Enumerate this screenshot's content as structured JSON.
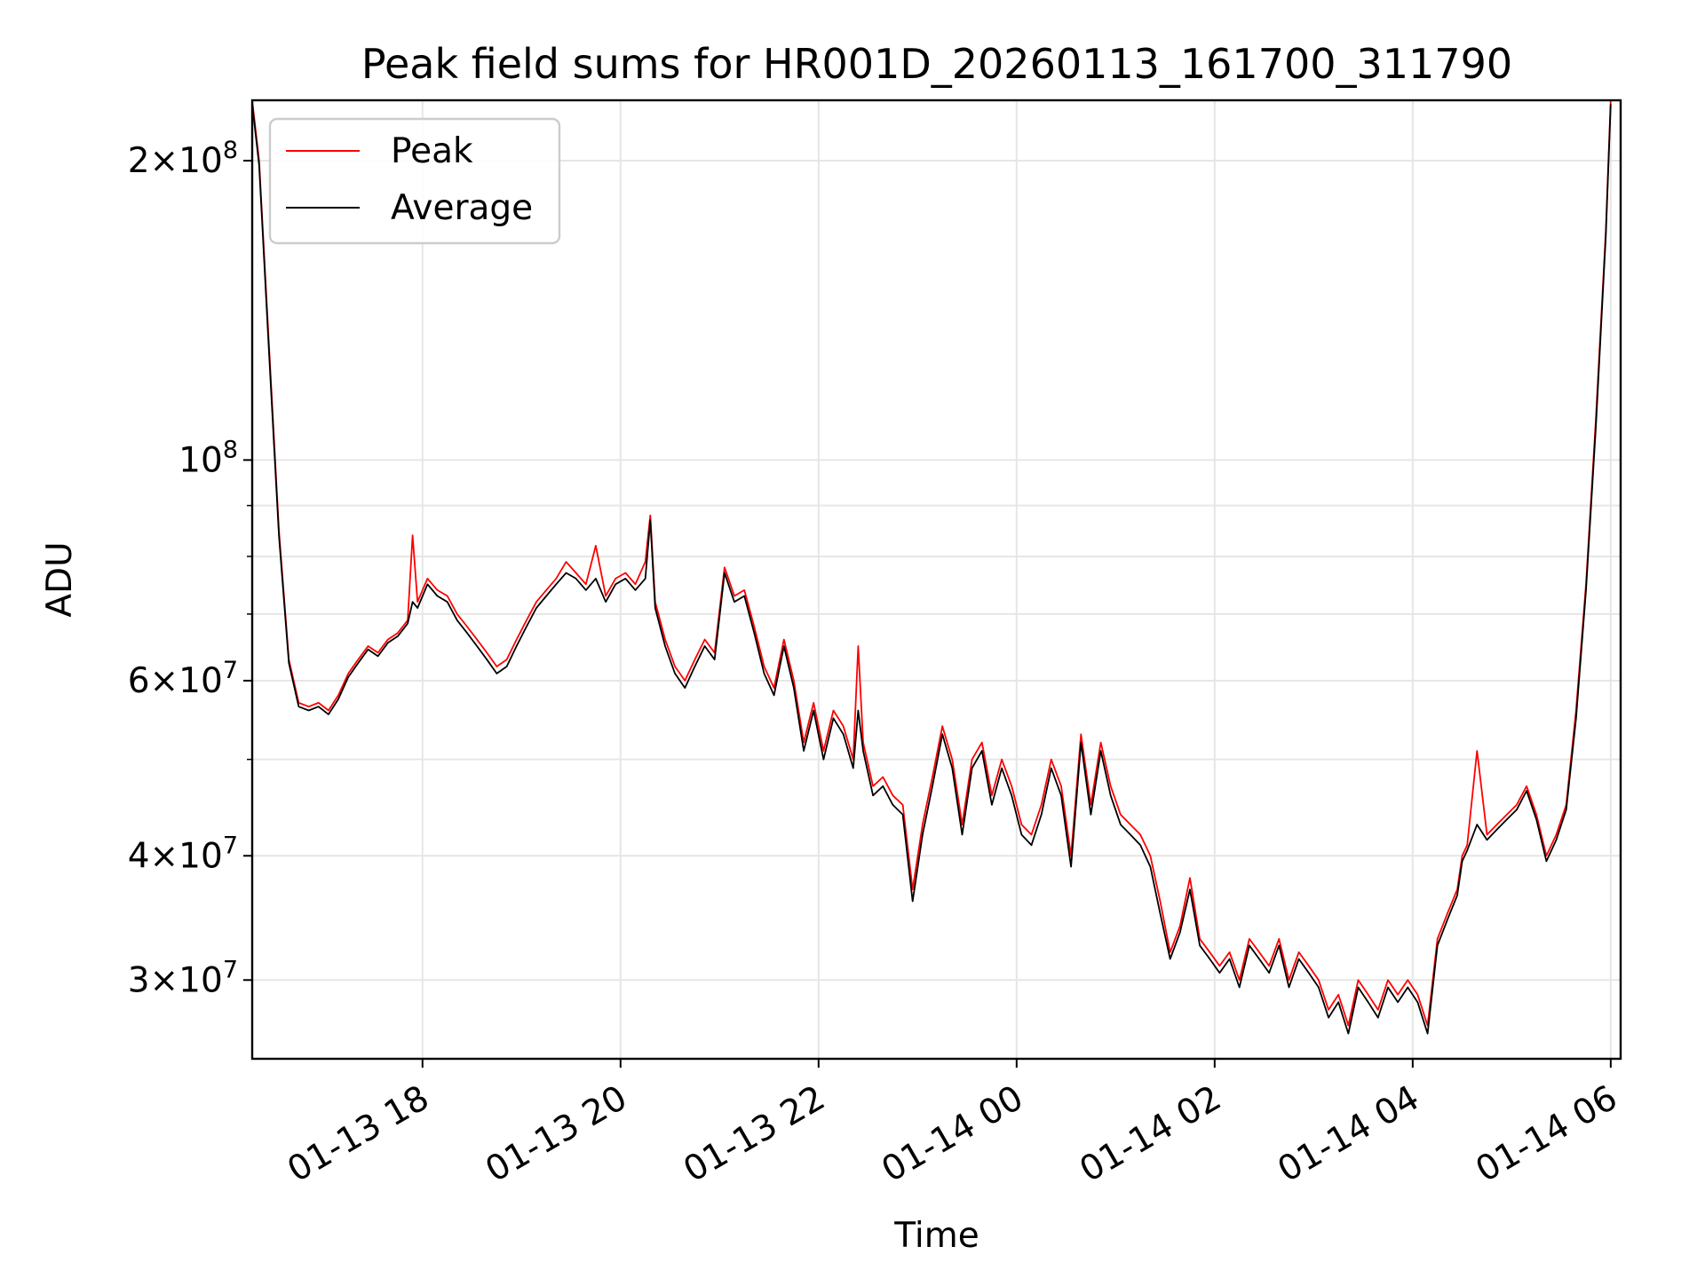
{
  "chart_data": {
    "type": "line",
    "title": "Peak field sums for HR001D_20260113_161700_311790",
    "xlabel": "Time",
    "ylabel": "ADU",
    "yscale": "log",
    "ylim": [
      25000000,
      230000000
    ],
    "xlim_hours": [
      16.28,
      30.1
    ],
    "x_unit": "hours since 2026-01-13 00:00",
    "grid": true,
    "legend_position": "top-left",
    "x_ticks": [
      {
        "value": 18,
        "label": "01-13 18"
      },
      {
        "value": 20,
        "label": "01-13 20"
      },
      {
        "value": 22,
        "label": "01-13 22"
      },
      {
        "value": 24,
        "label": "01-14 00"
      },
      {
        "value": 26,
        "label": "01-14 02"
      },
      {
        "value": 28,
        "label": "01-14 04"
      },
      {
        "value": 30,
        "label": "01-14 06"
      }
    ],
    "y_major_ticks": [
      {
        "value": 30000000,
        "mant": "3",
        "exp": "7"
      },
      {
        "value": 40000000,
        "mant": "4",
        "exp": "7"
      },
      {
        "value": 60000000,
        "mant": "6",
        "exp": "7"
      },
      {
        "value": 100000000,
        "mant": "",
        "exp": "8"
      },
      {
        "value": 200000000,
        "mant": "2",
        "exp": "8"
      }
    ],
    "y_minor_ticks": [
      50000000,
      70000000,
      80000000,
      90000000
    ],
    "series": [
      {
        "name": "Peak",
        "color": "#ff0000",
        "x": [
          16.28,
          16.35,
          16.45,
          16.55,
          16.65,
          16.75,
          16.85,
          16.95,
          17.05,
          17.15,
          17.25,
          17.35,
          17.45,
          17.55,
          17.65,
          17.75,
          17.85,
          17.9,
          17.95,
          18.05,
          18.15,
          18.25,
          18.35,
          18.45,
          18.55,
          18.65,
          18.75,
          18.85,
          18.95,
          19.05,
          19.15,
          19.25,
          19.35,
          19.45,
          19.55,
          19.65,
          19.75,
          19.85,
          19.95,
          20.05,
          20.15,
          20.25,
          20.3,
          20.35,
          20.45,
          20.55,
          20.65,
          20.75,
          20.85,
          20.95,
          21.05,
          21.15,
          21.25,
          21.35,
          21.45,
          21.55,
          21.65,
          21.75,
          21.85,
          21.95,
          22.05,
          22.15,
          22.25,
          22.35,
          22.4,
          22.45,
          22.55,
          22.65,
          22.75,
          22.85,
          22.95,
          23.05,
          23.15,
          23.25,
          23.35,
          23.45,
          23.55,
          23.65,
          23.75,
          23.85,
          23.95,
          24.05,
          24.15,
          24.25,
          24.35,
          24.45,
          24.55,
          24.65,
          24.75,
          24.85,
          24.95,
          25.05,
          25.15,
          25.25,
          25.35,
          25.45,
          25.55,
          25.65,
          25.75,
          25.85,
          25.95,
          26.05,
          26.15,
          26.25,
          26.35,
          26.45,
          26.55,
          26.65,
          26.75,
          26.85,
          26.95,
          27.05,
          27.15,
          27.25,
          27.35,
          27.45,
          27.55,
          27.65,
          27.75,
          27.85,
          27.95,
          28.05,
          28.15,
          28.25,
          28.35,
          28.45,
          28.5,
          28.55,
          28.65,
          28.75,
          28.85,
          28.95,
          29.05,
          29.15,
          29.25,
          29.35,
          29.45,
          29.55,
          29.65,
          29.75,
          29.85,
          29.95,
          30.0
        ],
        "values": [
          230000000,
          200000000,
          130000000,
          85000000,
          63000000,
          57000000,
          56500000,
          57000000,
          56000000,
          58000000,
          61000000,
          63000000,
          65000000,
          64000000,
          66000000,
          67000000,
          69000000,
          84000000,
          72000000,
          76000000,
          74000000,
          73000000,
          70000000,
          68000000,
          66000000,
          64000000,
          62000000,
          63000000,
          66000000,
          69000000,
          72000000,
          74000000,
          76000000,
          79000000,
          77000000,
          75000000,
          82000000,
          73000000,
          76000000,
          77000000,
          75000000,
          79000000,
          88000000,
          72000000,
          66000000,
          62000000,
          60000000,
          63000000,
          66000000,
          64000000,
          78000000,
          73000000,
          74000000,
          68000000,
          62000000,
          59000000,
          66000000,
          60000000,
          52000000,
          57000000,
          51000000,
          56000000,
          54000000,
          50000000,
          65000000,
          52000000,
          47000000,
          48000000,
          46000000,
          45000000,
          37000000,
          43000000,
          48000000,
          54000000,
          50000000,
          43000000,
          50000000,
          52000000,
          46000000,
          50000000,
          47000000,
          43000000,
          42000000,
          45000000,
          50000000,
          47000000,
          40000000,
          53000000,
          45000000,
          52000000,
          47000000,
          44000000,
          43000000,
          42000000,
          40000000,
          36000000,
          32000000,
          34000000,
          38000000,
          33000000,
          32000000,
          31000000,
          32000000,
          30000000,
          33000000,
          32000000,
          31000000,
          33000000,
          30000000,
          32000000,
          31000000,
          30000000,
          28000000,
          29000000,
          27000000,
          30000000,
          29000000,
          28000000,
          30000000,
          29000000,
          30000000,
          29000000,
          27000000,
          33000000,
          35000000,
          37000000,
          40000000,
          41000000,
          51000000,
          42000000,
          43000000,
          44000000,
          45000000,
          47000000,
          44000000,
          40000000,
          42000000,
          45000000,
          56000000,
          75000000,
          110000000,
          170000000,
          230000000
        ]
      },
      {
        "name": "Average",
        "color": "#000000",
        "x": [
          16.28,
          16.35,
          16.45,
          16.55,
          16.65,
          16.75,
          16.85,
          16.95,
          17.05,
          17.15,
          17.25,
          17.35,
          17.45,
          17.55,
          17.65,
          17.75,
          17.85,
          17.9,
          17.95,
          18.05,
          18.15,
          18.25,
          18.35,
          18.45,
          18.55,
          18.65,
          18.75,
          18.85,
          18.95,
          19.05,
          19.15,
          19.25,
          19.35,
          19.45,
          19.55,
          19.65,
          19.75,
          19.85,
          19.95,
          20.05,
          20.15,
          20.25,
          20.3,
          20.35,
          20.45,
          20.55,
          20.65,
          20.75,
          20.85,
          20.95,
          21.05,
          21.15,
          21.25,
          21.35,
          21.45,
          21.55,
          21.65,
          21.75,
          21.85,
          21.95,
          22.05,
          22.15,
          22.25,
          22.35,
          22.4,
          22.45,
          22.55,
          22.65,
          22.75,
          22.85,
          22.95,
          23.05,
          23.15,
          23.25,
          23.35,
          23.45,
          23.55,
          23.65,
          23.75,
          23.85,
          23.95,
          24.05,
          24.15,
          24.25,
          24.35,
          24.45,
          24.55,
          24.65,
          24.75,
          24.85,
          24.95,
          25.05,
          25.15,
          25.25,
          25.35,
          25.45,
          25.55,
          25.65,
          25.75,
          25.85,
          25.95,
          26.05,
          26.15,
          26.25,
          26.35,
          26.45,
          26.55,
          26.65,
          26.75,
          26.85,
          26.95,
          27.05,
          27.15,
          27.25,
          27.35,
          27.45,
          27.55,
          27.65,
          27.75,
          27.85,
          27.95,
          28.05,
          28.15,
          28.25,
          28.35,
          28.45,
          28.5,
          28.55,
          28.65,
          28.75,
          28.85,
          28.95,
          29.05,
          29.15,
          29.25,
          29.35,
          29.45,
          29.55,
          29.65,
          29.75,
          29.85,
          29.95,
          30.0
        ],
        "values": [
          228000000,
          198000000,
          128000000,
          84000000,
          62500000,
          56500000,
          56000000,
          56500000,
          55500000,
          57500000,
          60500000,
          62500000,
          64500000,
          63500000,
          65500000,
          66500000,
          68500000,
          72000000,
          71000000,
          75000000,
          73000000,
          72000000,
          69000000,
          67000000,
          65000000,
          63000000,
          61000000,
          62000000,
          65000000,
          68000000,
          71000000,
          73000000,
          75000000,
          77000000,
          76000000,
          74000000,
          76000000,
          72000000,
          75000000,
          76000000,
          74000000,
          76000000,
          87000000,
          71000000,
          65000000,
          61000000,
          59000000,
          62000000,
          65000000,
          63000000,
          77000000,
          72000000,
          73000000,
          67000000,
          61000000,
          58000000,
          65000000,
          59000000,
          51000000,
          56000000,
          50000000,
          55000000,
          53000000,
          49000000,
          56000000,
          51000000,
          46000000,
          47000000,
          45000000,
          44000000,
          36000000,
          42000000,
          47000000,
          53000000,
          49000000,
          42000000,
          49000000,
          51000000,
          45000000,
          49000000,
          46000000,
          42000000,
          41000000,
          44000000,
          49000000,
          46000000,
          39000000,
          52000000,
          44000000,
          51000000,
          46000000,
          43000000,
          42000000,
          41000000,
          39000000,
          35000000,
          31500000,
          33500000,
          37000000,
          32500000,
          31500000,
          30500000,
          31500000,
          29500000,
          32500000,
          31500000,
          30500000,
          32500000,
          29500000,
          31500000,
          30500000,
          29500000,
          27500000,
          28500000,
          26500000,
          29500000,
          28500000,
          27500000,
          29500000,
          28500000,
          29500000,
          28500000,
          26500000,
          32500000,
          34500000,
          36500000,
          39500000,
          40500000,
          43000000,
          41500000,
          42500000,
          43500000,
          44500000,
          46500000,
          43500000,
          39500000,
          41500000,
          44500000,
          55000000,
          74000000,
          108000000,
          168000000,
          228000000
        ]
      }
    ]
  }
}
